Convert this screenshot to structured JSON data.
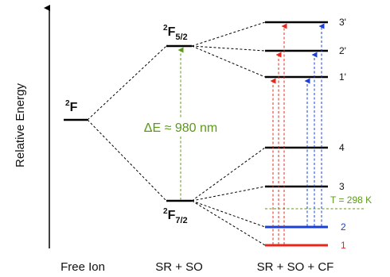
{
  "axis": {
    "label": "Relative Energy"
  },
  "columns": {
    "free_ion": "Free Ion",
    "sr_so": "SR + SO",
    "sr_so_cf": "SR + SO + CF"
  },
  "terms": {
    "f": {
      "sup": "2",
      "main": "F",
      "sub": ""
    },
    "f52": {
      "sup": "2",
      "main": "F",
      "sub": "5/2"
    },
    "f72": {
      "sup": "2",
      "main": "F",
      "sub": "7/2"
    }
  },
  "gap_label": "ΔE ≈ 980 nm",
  "temperature_label": "T = 298 K",
  "cf_levels": [
    "3'",
    "2'",
    "1'",
    "4",
    "3",
    "2",
    "1"
  ],
  "colors": {
    "black": "#000000",
    "red": "#e8261c",
    "blue": "#1a3fd6",
    "green": "#5b9a17"
  }
}
